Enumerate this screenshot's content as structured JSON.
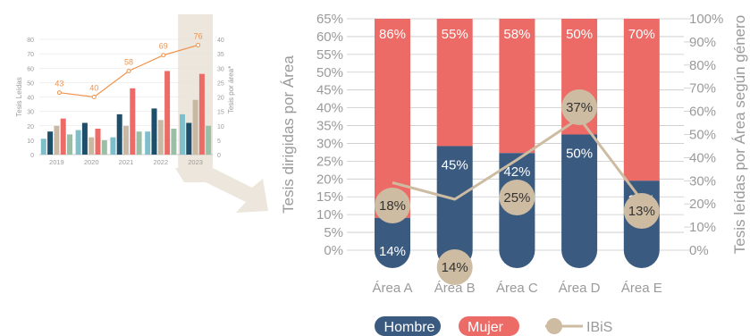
{
  "colors": {
    "hombre": "#3a5a80",
    "mujer": "#ec6b66",
    "ibis": "#cdbca2",
    "grid": "#c9c9c9",
    "axis_text": "#9a9a9a",
    "highlight": "#ece6dc",
    "small_teal": "#7fbfcb",
    "small_navy": "#1f4e6b",
    "small_tan": "#c8b8a4",
    "small_red": "#ec6b66",
    "small_green": "#9bbfa6",
    "small_line": "#f0924a"
  },
  "chart_data": [
    {
      "type": "bar",
      "title": "",
      "ylabel": "Tesis Leídas",
      "y2label": "Tesis por área*",
      "ylim": [
        0,
        80
      ],
      "y2lim": [
        0,
        40
      ],
      "yticks": [
        0,
        10,
        20,
        30,
        40,
        50,
        60,
        70,
        80
      ],
      "y2ticks": [
        0,
        5,
        10,
        15,
        20,
        25,
        30,
        35,
        40
      ],
      "categories": [
        "2019",
        "2020",
        "2021",
        "2022",
        "2023"
      ],
      "highlighted_category": "2023",
      "series": [
        {
          "values": [
            11,
            17,
            12,
            16,
            28
          ]
        },
        {
          "values": [
            16,
            22,
            28,
            32,
            22
          ]
        },
        {
          "values": [
            20,
            12,
            20,
            24,
            38
          ]
        },
        {
          "values": [
            25,
            18,
            46,
            58,
            56
          ]
        },
        {
          "values": [
            14,
            10,
            16,
            18,
            20
          ]
        }
      ],
      "line": {
        "name": "",
        "values": [
          43,
          40,
          58,
          69,
          76
        ],
        "labels": [
          "43",
          "40",
          "58",
          "69",
          "76"
        ]
      }
    },
    {
      "type": "bar",
      "stacked": true,
      "title": "",
      "ylabel": "Tesis dirigidas por Área",
      "y2label": "Tesis leídas por Área según género",
      "ylim": [
        0,
        65
      ],
      "y2lim": [
        0,
        100
      ],
      "yticks": [
        "0%",
        "5%",
        "10%",
        "15%",
        "20%",
        "25%",
        "30%",
        "35%",
        "40%",
        "45%",
        "50%",
        "55%",
        "60%",
        "65%"
      ],
      "y2ticks": [
        "0%",
        "10%",
        "20%",
        "30%",
        "40%",
        "50%",
        "60%",
        "70%",
        "80%",
        "90%",
        "100%"
      ],
      "categories": [
        "Área A",
        "Área B",
        "Área C",
        "Área D",
        "Área E"
      ],
      "series": [
        {
          "name": "Hombre",
          "values": [
            14,
            45,
            42,
            50,
            30
          ],
          "labels": [
            "14%",
            "45%",
            "42%",
            "50%",
            "30%"
          ]
        },
        {
          "name": "Mujer",
          "values": [
            86,
            55,
            58,
            50,
            70
          ],
          "labels": [
            "86%",
            "55%",
            "58%",
            "50%",
            "70%"
          ]
        }
      ],
      "line": {
        "name": "IBiS",
        "values": [
          18,
          14,
          25,
          37,
          13
        ],
        "labels": [
          "18%",
          "14%",
          "25%",
          "37%",
          "13%"
        ],
        "marker_y2": [
          29.2,
          22,
          39.1,
          57.1,
          21.6
        ]
      },
      "legend": {
        "position": "bottom",
        "entries": [
          "Hombre",
          "Mujer",
          "IBiS"
        ]
      }
    }
  ]
}
